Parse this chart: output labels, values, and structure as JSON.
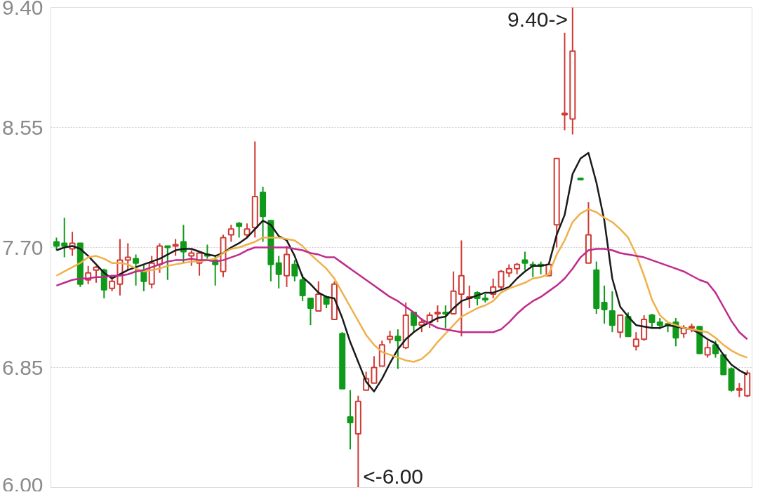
{
  "chart_data": {
    "type": "candlestick",
    "categories": [
      null,
      null,
      null,
      null,
      null,
      null,
      null,
      null,
      null,
      null,
      null,
      null,
      null,
      null,
      null,
      null,
      null,
      null,
      null,
      null,
      null,
      null,
      null,
      null,
      null,
      null,
      null,
      null,
      null,
      null,
      null,
      null,
      null,
      null,
      null,
      null,
      null,
      null,
      null,
      null,
      null,
      null,
      null,
      null,
      null,
      null,
      null,
      null,
      null,
      null,
      null,
      null,
      null,
      null,
      null,
      null,
      null,
      null,
      null,
      null,
      null,
      null,
      null,
      null,
      null,
      null,
      null,
      null,
      null,
      null,
      null,
      null,
      null,
      null,
      null,
      null,
      null,
      null,
      null,
      null,
      null,
      null,
      null,
      null,
      null,
      null,
      null,
      null
    ],
    "ohlc": [
      [
        7.74,
        7.77,
        7.68,
        7.71
      ],
      [
        7.73,
        7.91,
        7.63,
        7.71
      ],
      [
        7.69,
        7.81,
        7.64,
        7.73
      ],
      [
        7.73,
        7.73,
        7.42,
        7.44
      ],
      [
        7.47,
        7.57,
        7.44,
        7.52
      ],
      [
        7.54,
        7.57,
        7.45,
        7.56
      ],
      [
        7.54,
        7.55,
        7.34,
        7.4
      ],
      [
        7.41,
        7.5,
        7.39,
        7.46
      ],
      [
        7.44,
        7.76,
        7.36,
        7.61
      ],
      [
        7.61,
        7.73,
        7.54,
        7.63
      ],
      [
        7.62,
        7.65,
        7.43,
        7.59
      ],
      [
        7.53,
        7.58,
        7.39,
        7.46
      ],
      [
        7.44,
        7.64,
        7.41,
        7.59
      ],
      [
        7.58,
        7.73,
        7.52,
        7.71
      ],
      [
        7.71,
        7.71,
        7.47,
        7.7
      ],
      [
        7.71,
        7.76,
        7.64,
        7.72
      ],
      [
        7.74,
        7.86,
        7.59,
        7.67
      ],
      [
        7.64,
        7.68,
        7.57,
        7.66
      ],
      [
        7.59,
        7.67,
        7.5,
        7.66
      ],
      [
        7.65,
        7.72,
        7.62,
        7.64
      ],
      [
        7.61,
        7.64,
        7.43,
        7.58
      ],
      [
        7.53,
        7.79,
        7.49,
        7.77
      ],
      [
        7.79,
        7.86,
        7.74,
        7.83
      ],
      [
        7.87,
        7.88,
        7.77,
        7.85
      ],
      [
        7.79,
        7.87,
        7.77,
        7.83
      ],
      [
        7.84,
        8.45,
        7.77,
        8.06
      ],
      [
        8.09,
        8.13,
        7.74,
        7.92
      ],
      [
        7.89,
        7.89,
        7.46,
        7.58
      ],
      [
        7.59,
        7.64,
        7.41,
        7.51
      ],
      [
        7.5,
        7.71,
        7.42,
        7.65
      ],
      [
        7.58,
        7.61,
        7.46,
        7.5
      ],
      [
        7.47,
        7.51,
        7.32,
        7.36
      ],
      [
        7.34,
        7.34,
        7.15,
        7.27
      ],
      [
        7.25,
        7.46,
        7.25,
        7.37
      ],
      [
        7.35,
        7.36,
        7.27,
        7.3
      ],
      [
        7.19,
        7.46,
        7.19,
        7.44
      ],
      [
        7.09,
        7.1,
        6.7,
        6.7
      ],
      [
        6.5,
        6.69,
        6.27,
        6.46
      ],
      [
        6.38,
        6.65,
        6.0,
        6.61
      ],
      [
        6.69,
        6.82,
        6.69,
        6.77
      ],
      [
        6.74,
        6.93,
        6.74,
        6.85
      ],
      [
        6.86,
        7.04,
        6.86,
        7.01
      ],
      [
        7.05,
        7.11,
        7.02,
        7.07
      ],
      [
        7.07,
        7.12,
        6.84,
        7.04
      ],
      [
        6.99,
        7.31,
        6.98,
        7.22
      ],
      [
        7.24,
        7.24,
        7.1,
        7.15
      ],
      [
        7.15,
        7.2,
        7.1,
        7.17
      ],
      [
        7.17,
        7.24,
        7.13,
        7.22
      ],
      [
        7.23,
        7.29,
        7.17,
        7.24
      ],
      [
        7.24,
        7.29,
        7.13,
        7.23
      ],
      [
        7.23,
        7.53,
        7.23,
        7.39
      ],
      [
        7.37,
        7.75,
        7.07,
        7.5
      ],
      [
        7.34,
        7.43,
        7.27,
        7.35
      ],
      [
        7.38,
        7.39,
        7.29,
        7.34
      ],
      [
        7.34,
        7.37,
        7.31,
        7.33
      ],
      [
        7.37,
        7.48,
        7.34,
        7.42
      ],
      [
        7.42,
        7.54,
        7.4,
        7.53
      ],
      [
        7.52,
        7.58,
        7.49,
        7.55
      ],
      [
        7.55,
        7.59,
        7.51,
        7.58
      ],
      [
        7.61,
        7.67,
        7.54,
        7.59
      ],
      [
        7.58,
        7.6,
        7.49,
        7.57
      ],
      [
        7.58,
        7.6,
        7.51,
        7.57
      ],
      [
        7.5,
        7.58,
        7.5,
        7.58
      ],
      [
        7.86,
        8.33,
        7.7,
        8.33
      ],
      [
        8.64,
        9.22,
        8.53,
        8.65
      ],
      [
        8.61,
        9.4,
        8.5,
        9.09
      ],
      [
        8.19,
        8.19,
        8.18,
        8.18
      ],
      [
        7.59,
        8.02,
        7.59,
        7.79
      ],
      [
        7.54,
        7.6,
        7.23,
        7.27
      ],
      [
        7.31,
        7.43,
        7.16,
        7.26
      ],
      [
        7.25,
        7.39,
        7.1,
        7.15
      ],
      [
        7.1,
        7.22,
        7.06,
        7.22
      ],
      [
        7.21,
        7.24,
        7.07,
        7.07
      ],
      [
        7.0,
        7.1,
        6.97,
        7.05
      ],
      [
        7.05,
        7.22,
        7.04,
        7.19
      ],
      [
        7.22,
        7.23,
        7.13,
        7.17
      ],
      [
        7.17,
        7.2,
        7.12,
        7.15
      ],
      [
        7.16,
        7.16,
        7.1,
        7.15
      ],
      [
        7.17,
        7.2,
        7.0,
        7.06
      ],
      [
        7.09,
        7.15,
        7.06,
        7.13
      ],
      [
        7.13,
        7.16,
        7.1,
        7.14
      ],
      [
        7.14,
        7.14,
        6.95,
        6.95
      ],
      [
        6.94,
        7.04,
        6.92,
        6.99
      ],
      [
        7.01,
        7.04,
        6.92,
        6.95
      ],
      [
        6.94,
        6.94,
        6.8,
        6.8
      ],
      [
        6.84,
        6.85,
        6.68,
        6.69
      ],
      [
        6.69,
        6.74,
        6.64,
        6.7
      ],
      [
        6.65,
        6.83,
        6.64,
        6.81
      ]
    ],
    "colors": [
      "#109a1b",
      "#109a1b",
      "#d03a35",
      "#109a1b",
      "#d03a35",
      "#d03a35",
      "#109a1b",
      "#d03a35",
      "#d03a35",
      "#d03a35",
      "#109a1b",
      "#109a1b",
      "#d03a35",
      "#d03a35",
      "#109a1b",
      "#d03a35",
      "#109a1b",
      "#d03a35",
      "#d03a35",
      "#109a1b",
      "#109a1b",
      "#d03a35",
      "#d03a35",
      "#109a1b",
      "#d03a35",
      "#d03a35",
      "#109a1b",
      "#109a1b",
      "#109a1b",
      "#d03a35",
      "#109a1b",
      "#109a1b",
      "#109a1b",
      "#d03a35",
      "#109a1b",
      "#d03a35",
      "#109a1b",
      "#109a1b",
      "#d03a35",
      "#d03a35",
      "#d03a35",
      "#d03a35",
      "#d03a35",
      "#109a1b",
      "#d03a35",
      "#109a1b",
      "#d03a35",
      "#d03a35",
      "#d03a35",
      "#109a1b",
      "#d03a35",
      "#d03a35",
      "#d03a35",
      "#109a1b",
      "#109a1b",
      "#d03a35",
      "#d03a35",
      "#d03a35",
      "#d03a35",
      "#109a1b",
      "#109a1b",
      "#109a1b",
      "#d03a35",
      "#d03a35",
      "#d03a35",
      "#d03a35",
      "#109a1b",
      "#d03a35",
      "#109a1b",
      "#109a1b",
      "#109a1b",
      "#d03a35",
      "#109a1b",
      "#d03a35",
      "#d03a35",
      "#109a1b",
      "#109a1b",
      "#109a1b",
      "#109a1b",
      "#d03a35",
      "#d03a35",
      "#109a1b",
      "#d03a35",
      "#109a1b",
      "#109a1b",
      "#109a1b",
      "#d03a35",
      "#d03a35"
    ],
    "series": [
      {
        "type": "line",
        "color": "#1a1a1a",
        "values": [
          7.68,
          7.7,
          7.71,
          7.69,
          7.64,
          7.58,
          7.52,
          7.48,
          7.51,
          7.54,
          7.56,
          7.58,
          7.6,
          7.62,
          7.65,
          7.68,
          7.69,
          7.69,
          7.67,
          7.65,
          7.64,
          7.66,
          7.7,
          7.73,
          7.77,
          7.83,
          7.89,
          7.86,
          7.78,
          7.75,
          7.64,
          7.49,
          7.44,
          7.38,
          7.35,
          7.34,
          7.2,
          7.03,
          6.89,
          6.75,
          6.68,
          6.77,
          6.88,
          6.98,
          7.05,
          7.1,
          7.14,
          7.17,
          7.2,
          7.21,
          7.27,
          7.32,
          7.34,
          7.36,
          7.38,
          7.38,
          7.4,
          7.42,
          7.48,
          7.53,
          7.57,
          7.57,
          7.58,
          7.79,
          7.93,
          8.22,
          8.33,
          8.37,
          8.16,
          7.89,
          7.48,
          7.28,
          7.21,
          7.15,
          7.14,
          7.13,
          7.13,
          7.15,
          7.14,
          7.13,
          7.12,
          7.09,
          7.05,
          7.02,
          6.94,
          6.87,
          6.83,
          6.8
        ]
      },
      {
        "type": "line",
        "color": "#f0b04a",
        "values": [
          7.5,
          7.53,
          7.56,
          7.59,
          7.63,
          7.64,
          7.62,
          7.59,
          7.59,
          7.58,
          7.55,
          7.53,
          7.54,
          7.55,
          7.57,
          7.58,
          7.59,
          7.6,
          7.6,
          7.61,
          7.62,
          7.66,
          7.69,
          7.7,
          7.72,
          7.74,
          7.77,
          7.77,
          7.77,
          7.76,
          7.75,
          7.71,
          7.65,
          7.6,
          7.55,
          7.48,
          7.38,
          7.28,
          7.18,
          7.08,
          7.01,
          6.96,
          6.94,
          6.92,
          6.9,
          6.89,
          6.91,
          6.96,
          7.03,
          7.09,
          7.15,
          7.21,
          7.24,
          7.27,
          7.29,
          7.32,
          7.38,
          7.41,
          7.43,
          7.45,
          7.48,
          7.49,
          7.51,
          7.65,
          7.75,
          7.88,
          7.94,
          7.97,
          7.95,
          7.91,
          7.88,
          7.83,
          7.77,
          7.65,
          7.5,
          7.33,
          7.22,
          7.17,
          7.15,
          7.13,
          7.12,
          7.11,
          7.1,
          7.06,
          7.01,
          6.97,
          6.94,
          6.92
        ]
      },
      {
        "type": "line",
        "color": "#c02a8c",
        "values": [
          7.43,
          7.45,
          7.47,
          7.48,
          7.48,
          7.49,
          7.49,
          7.5,
          7.5,
          7.51,
          7.53,
          7.54,
          7.56,
          7.58,
          7.6,
          7.61,
          7.61,
          7.62,
          7.61,
          7.61,
          7.6,
          7.61,
          7.63,
          7.65,
          7.68,
          7.7,
          7.7,
          7.7,
          7.7,
          7.7,
          7.69,
          7.68,
          7.66,
          7.65,
          7.63,
          7.63,
          7.59,
          7.55,
          7.51,
          7.47,
          7.43,
          7.39,
          7.35,
          7.32,
          7.28,
          7.24,
          7.19,
          7.16,
          7.13,
          7.12,
          7.11,
          7.1,
          7.1,
          7.1,
          7.1,
          7.1,
          7.12,
          7.17,
          7.23,
          7.28,
          7.32,
          7.35,
          7.39,
          7.43,
          7.48,
          7.55,
          7.63,
          7.68,
          7.69,
          7.69,
          7.68,
          7.66,
          7.65,
          7.64,
          7.63,
          7.61,
          7.59,
          7.57,
          7.55,
          7.53,
          7.5,
          7.47,
          7.45,
          7.38,
          7.28,
          7.18,
          7.1,
          7.05
        ]
      }
    ],
    "ylim": [
      6.0,
      9.4
    ],
    "yticks": [
      {
        "value": 6.0,
        "label": "6.00"
      },
      6.85,
      {
        "value": 7.7,
        "label": "7.70"
      },
      8.55,
      {
        "value": 9.4,
        "label": "9.40"
      }
    ],
    "grid": "y",
    "annotations": [
      "9.40->",
      "<-6.00"
    ]
  }
}
